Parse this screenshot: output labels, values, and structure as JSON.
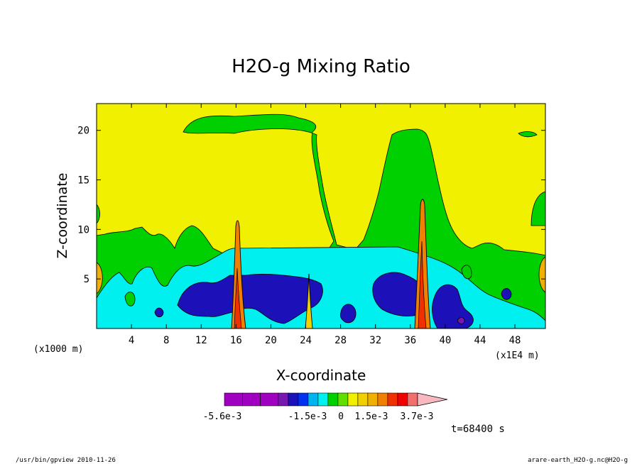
{
  "chart_data": {
    "type": "heatmap",
    "title": "H2O-g Mixing Ratio",
    "xlabel": "X-coordinate",
    "ylabel": "Z-coordinate",
    "x_unit_left": "(x1000 m)",
    "x_unit_right": "(x1E4 m)",
    "xlim": [
      0,
      51.5
    ],
    "ylim": [
      0,
      22.7
    ],
    "x_ticks": [
      "4",
      "8",
      "12",
      "16",
      "20",
      "24",
      "28",
      "32",
      "36",
      "40",
      "44",
      "48"
    ],
    "y_ticks": [
      "5",
      "10",
      "15",
      "20"
    ],
    "colorbar": {
      "colors": [
        "#a000c0",
        "#a000c0",
        "#a000c0",
        "#7818b0",
        "#1c10b8",
        "#0030f0",
        "#00b4f0",
        "#00f0f0",
        "#00d000",
        "#60e000",
        "#f0f000",
        "#f0d000",
        "#f0b000",
        "#f08000",
        "#f03000",
        "#f00000",
        "#f07070",
        "#f8b8c0"
      ],
      "labels": [
        "-5.6e-3",
        "-1.5e-3",
        "0",
        "1.5e-3",
        "3.7e-3"
      ]
    },
    "contour_levels": [
      "-1.5e-3",
      "-1e-3",
      "-5e-4",
      "0",
      "5e-4",
      "1e-3",
      "1.5e-3",
      "2e-3",
      "2.6e-3",
      "3.2e-3",
      "3.7e-3"
    ],
    "time_label": "t=68400 s"
  },
  "footer": {
    "left": "/usr/bin/gpview  2010-11-26",
    "right": "arare-earth_H2O-g.nc@H2O-g"
  }
}
